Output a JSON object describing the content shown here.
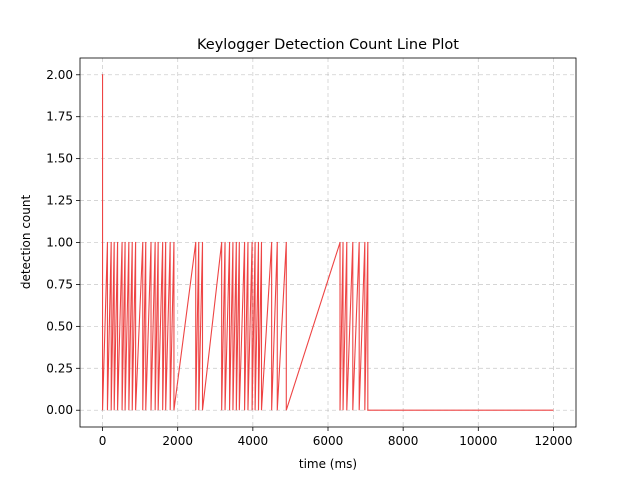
{
  "chart_data": {
    "type": "line",
    "title": "Keylogger Detection Count Line Plot",
    "xlabel": "time (ms)",
    "ylabel": "detection count",
    "xlim": [
      -600,
      12600
    ],
    "ylim": [
      -0.1,
      2.1
    ],
    "xticks": [
      0,
      2000,
      4000,
      6000,
      8000,
      10000,
      12000
    ],
    "xtick_labels": [
      "0",
      "2000",
      "4000",
      "6000",
      "8000",
      "10000",
      "12000"
    ],
    "yticks": [
      0.0,
      0.25,
      0.5,
      0.75,
      1.0,
      1.25,
      1.5,
      1.75,
      2.0
    ],
    "ytick_labels": [
      "0.00",
      "0.25",
      "0.50",
      "0.75",
      "1.00",
      "1.25",
      "1.50",
      "1.75",
      "2.00"
    ],
    "grid": true,
    "series": [
      {
        "color": "#ee4444",
        "baseline": 0,
        "x_end": 12000,
        "events": [
          {
            "x": 0,
            "y": 2
          },
          {
            "x": 130,
            "y": 1
          },
          {
            "x": 230,
            "y": 1
          },
          {
            "x": 310,
            "y": 1
          },
          {
            "x": 400,
            "y": 1
          },
          {
            "x": 520,
            "y": 1
          },
          {
            "x": 600,
            "y": 1
          },
          {
            "x": 700,
            "y": 1
          },
          {
            "x": 790,
            "y": 1
          },
          {
            "x": 880,
            "y": 1
          },
          {
            "x": 1070,
            "y": 1
          },
          {
            "x": 1150,
            "y": 1
          },
          {
            "x": 1290,
            "y": 1
          },
          {
            "x": 1400,
            "y": 1
          },
          {
            "x": 1480,
            "y": 1
          },
          {
            "x": 1600,
            "y": 1
          },
          {
            "x": 1680,
            "y": 1
          },
          {
            "x": 1800,
            "y": 1
          },
          {
            "x": 1900,
            "y": 1
          },
          {
            "x": 2480,
            "y": 1
          },
          {
            "x": 2560,
            "y": 1
          },
          {
            "x": 2660,
            "y": 1
          },
          {
            "x": 3170,
            "y": 1
          },
          {
            "x": 3260,
            "y": 1
          },
          {
            "x": 3380,
            "y": 1
          },
          {
            "x": 3470,
            "y": 1
          },
          {
            "x": 3560,
            "y": 1
          },
          {
            "x": 3640,
            "y": 1
          },
          {
            "x": 3780,
            "y": 1
          },
          {
            "x": 3870,
            "y": 1
          },
          {
            "x": 3980,
            "y": 1
          },
          {
            "x": 4060,
            "y": 1
          },
          {
            "x": 4150,
            "y": 1
          },
          {
            "x": 4230,
            "y": 1
          },
          {
            "x": 4500,
            "y": 1
          },
          {
            "x": 4650,
            "y": 1
          },
          {
            "x": 4890,
            "y": 1
          },
          {
            "x": 6320,
            "y": 1
          },
          {
            "x": 6400,
            "y": 1
          },
          {
            "x": 6500,
            "y": 1
          },
          {
            "x": 6660,
            "y": 1
          },
          {
            "x": 6830,
            "y": 1
          },
          {
            "x": 6980,
            "y": 1
          },
          {
            "x": 7060,
            "y": 1
          }
        ]
      }
    ]
  }
}
